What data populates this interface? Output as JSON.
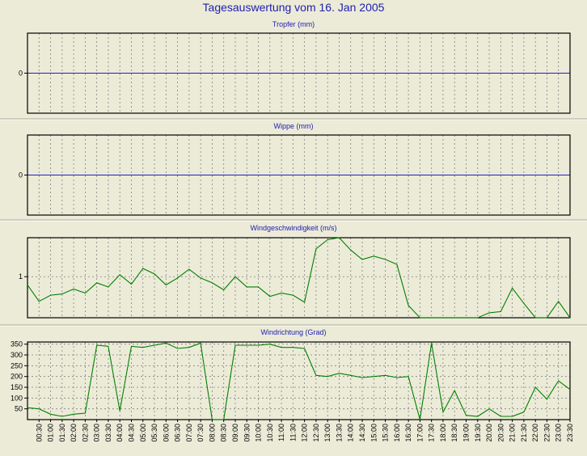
{
  "title": "Tagesauswertung vom 16. Jan 2005",
  "colors": {
    "background": "#ecebd8",
    "plot_bg": "#ecebd8",
    "title": "#2020b0",
    "zero_line": "#2020c0",
    "series": "#008000",
    "grid": "#808080",
    "frame": "#000000"
  },
  "chart_data": [
    {
      "type": "line",
      "title": "Tropfer (mm)",
      "yticks": [
        0
      ],
      "ylim": [
        -1,
        1
      ],
      "grid": true,
      "zero_line": 0,
      "series": [
        {
          "values": []
        }
      ]
    },
    {
      "type": "line",
      "title": "Wippe (mm)",
      "yticks": [
        0
      ],
      "ylim": [
        -1,
        1
      ],
      "grid": true,
      "zero_line": 0,
      "series": [
        {
          "values": []
        }
      ]
    },
    {
      "type": "line",
      "title": "Windgeschwindigkeit (m/s)",
      "yticks": [
        1
      ],
      "ylim": [
        0,
        1.95
      ],
      "grid": true,
      "series": [
        {
          "values": [
            0.8,
            0.4,
            0.55,
            0.58,
            0.7,
            0.6,
            0.85,
            0.75,
            1.05,
            0.82,
            1.2,
            1.07,
            0.8,
            0.97,
            1.18,
            0.97,
            0.85,
            0.68,
            1.0,
            0.75,
            0.75,
            0.52,
            0.6,
            0.55,
            0.38,
            1.68,
            1.9,
            1.95,
            1.65,
            1.42,
            1.5,
            1.42,
            1.3,
            0.3,
            0.0,
            0.0,
            0.0,
            0.0,
            0.0,
            0.0,
            0.12,
            0.15,
            0.72,
            0.35,
            0.0,
            0.0,
            0.4,
            0.0
          ]
        }
      ]
    },
    {
      "type": "line",
      "title": "Windrichtung (Grad)",
      "yticks": [
        50,
        100,
        150,
        200,
        250,
        300,
        350
      ],
      "ylim": [
        0,
        360
      ],
      "grid": true,
      "series": [
        {
          "values": [
            55,
            50,
            25,
            15,
            25,
            30,
            345,
            340,
            40,
            340,
            335,
            345,
            355,
            330,
            335,
            355,
            0,
            0,
            345,
            345,
            345,
            350,
            335,
            335,
            330,
            205,
            200,
            215,
            205,
            195,
            200,
            205,
            195,
            200,
            0,
            355,
            35,
            135,
            20,
            15,
            50,
            15,
            15,
            35,
            150,
            95,
            180,
            140
          ]
        }
      ]
    }
  ],
  "x_labels": [
    "00:30",
    "01:00",
    "01:30",
    "02:00",
    "02:30",
    "03:00",
    "03:30",
    "04:00",
    "04:30",
    "05:00",
    "05:30",
    "06:00",
    "06:30",
    "07:00",
    "07:30",
    "08:00",
    "08:30",
    "09:00",
    "09:30",
    "10:00",
    "10:30",
    "11:00",
    "11:30",
    "12:00",
    "12:30",
    "13:00",
    "13:30",
    "14:00",
    "14:30",
    "15:00",
    "15:30",
    "16:00",
    "16:30",
    "17:00",
    "17:30",
    "18:00",
    "18:30",
    "19:00",
    "19:30",
    "20:00",
    "20:30",
    "21:00",
    "21:30",
    "22:00",
    "22:30",
    "23:00",
    "23:30"
  ]
}
